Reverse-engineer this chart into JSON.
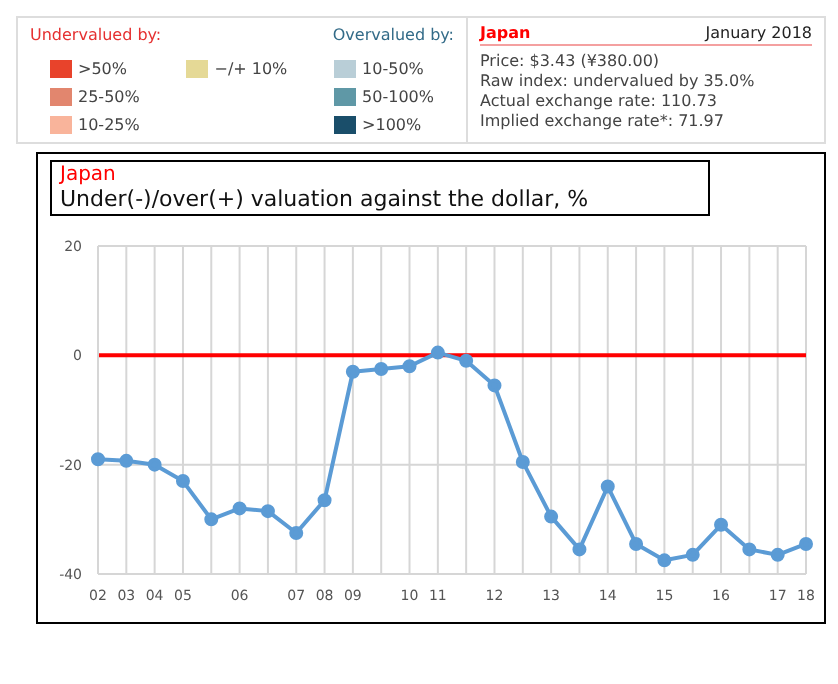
{
  "chart_data": [
    {
      "type": "other",
      "title": "Japan",
      "categories": [
        ">50%",
        "25-50%",
        "10-25%",
        "−/+ 10%",
        "10-50%",
        "50-100%",
        ">100%"
      ],
      "colors": [
        "#e8432b",
        "#e2866e",
        "#f9b49b",
        "#e5d996",
        "#b9ced7",
        "#5f98a6",
        "#1a4e6a"
      ],
      "annotations": [
        "Undervalued by:",
        "Overvalued by:",
        "January 2018",
        "Price: $3.43 (¥380.00)",
        "Raw index: undervalued by 35.0%",
        "Actual exchange rate: 110.73",
        "Implied exchange rate*: 71.97"
      ]
    },
    {
      "type": "line",
      "title": "Japan",
      "subtitle": "Under(-)/over(+) valuation against the dollar, %",
      "categories": [
        "02",
        "03",
        "04",
        "05",
        null,
        "06",
        null,
        "07",
        "08",
        "09",
        null,
        "10",
        "11",
        null,
        "12",
        null,
        "13",
        null,
        "14",
        null,
        "15",
        null,
        "16",
        null,
        "17",
        "18"
      ],
      "series": [
        {
          "color": "#5b9bd5",
          "values": [
            -19,
            -19.3,
            -20,
            -23,
            -30,
            -28,
            -28.5,
            -32.5,
            -26.5,
            -3,
            -2.5,
            -2,
            0.5,
            -1,
            -5.5,
            -19.5,
            -29.5,
            -35.5,
            -24,
            -34.5,
            -37.5,
            -36.5,
            -31,
            -35.5,
            -36.5,
            -34.5
          ]
        }
      ],
      "ylim": [
        -40,
        20
      ],
      "yticks": [
        -40,
        -20,
        0,
        20
      ],
      "grid": true,
      "marker": "circle",
      "line_style": "solid",
      "ref_lines": [
        {
          "axis": "y",
          "value": 0,
          "color": "#ff0000"
        }
      ]
    }
  ]
}
